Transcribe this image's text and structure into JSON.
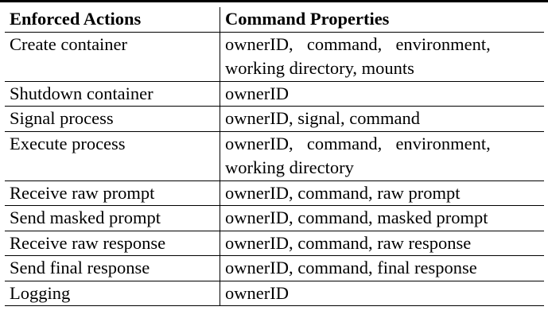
{
  "table": {
    "headers": [
      "Enforced Actions",
      "Command Properties"
    ],
    "rows": [
      {
        "action": "Create container",
        "properties": [
          "ownerID,  command,  environment,",
          "working directory, mounts"
        ]
      },
      {
        "action": "Shutdown container",
        "properties": [
          "ownerID"
        ]
      },
      {
        "action": "Signal process",
        "properties": [
          "ownerID, signal, command"
        ]
      },
      {
        "action": "Execute process",
        "properties": [
          "ownerID,  command,  environment,",
          "working directory"
        ]
      },
      {
        "action": "Receive raw prompt",
        "properties": [
          "ownerID, command, raw prompt"
        ]
      },
      {
        "action": "Send masked prompt",
        "properties": [
          "ownerID, command, masked prompt"
        ]
      },
      {
        "action": "Receive raw response",
        "properties": [
          "ownerID, command, raw response"
        ]
      },
      {
        "action": "Send final response",
        "properties": [
          "ownerID, command, final response"
        ]
      },
      {
        "action": "Logging",
        "properties": [
          "ownerID"
        ]
      }
    ]
  }
}
